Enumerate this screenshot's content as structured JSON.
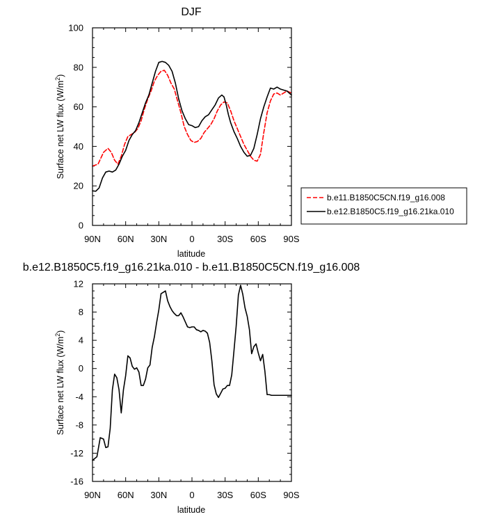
{
  "chart_data": [
    {
      "type": "line",
      "title": "DJF",
      "xlabel": "latitude",
      "ylabel": "Surface net LW flux (W/m",
      "ylabel_sup": "2",
      "ylabel_end": ")",
      "xlim": [
        -90,
        90
      ],
      "ylim": [
        0,
        100
      ],
      "xticks": [
        -90,
        -60,
        -30,
        0,
        30,
        60,
        90
      ],
      "xtick_labels": [
        "90N",
        "60N",
        "30N",
        "0",
        "30S",
        "60S",
        "90S"
      ],
      "yticks": [
        0,
        20,
        40,
        60,
        80,
        100
      ],
      "ytick_labels": [
        "0",
        "20",
        "40",
        "60",
        "80",
        "100"
      ],
      "grid": false,
      "legend_position": "right",
      "series": [
        {
          "name": "b.e11.B1850C5CN.f19_g16.008",
          "color": "#ff0000",
          "dash": "dashed",
          "x": [
            -90,
            -85,
            -80,
            -76,
            -73,
            -70,
            -67,
            -64,
            -61,
            -58,
            -55,
            -52,
            -49,
            -46,
            -43,
            -40,
            -37,
            -34,
            -31,
            -28,
            -25,
            -22,
            -19,
            -16,
            -13,
            -10,
            -7,
            -4,
            -1,
            2,
            5,
            8,
            11,
            14,
            17,
            20,
            23,
            26,
            29,
            32,
            35,
            38,
            41,
            44,
            47,
            50,
            53,
            56,
            59,
            62,
            65,
            68,
            71,
            74,
            77,
            80,
            83,
            86,
            90
          ],
          "values": [
            30,
            31,
            37,
            39,
            37,
            33,
            31,
            35,
            41,
            45,
            46,
            47,
            49,
            53,
            59,
            64,
            68,
            73,
            76,
            78,
            78.5,
            76,
            72,
            69,
            63,
            57,
            50,
            46,
            43,
            42,
            42.5,
            44,
            47,
            49,
            51,
            54,
            58,
            61,
            62.5,
            62,
            58,
            53,
            49,
            45,
            41,
            38,
            35,
            33,
            32.5,
            36,
            47,
            57,
            63,
            66.5,
            67,
            66,
            67,
            68,
            67
          ]
        },
        {
          "name": "b.e12.B1850C5.f19_g16.21ka.010",
          "color": "#000000",
          "dash": "solid",
          "x": [
            -90,
            -87,
            -84,
            -81,
            -78,
            -75,
            -72,
            -69,
            -66,
            -63,
            -60,
            -57,
            -54,
            -51,
            -48,
            -45,
            -42,
            -39,
            -36,
            -33,
            -30,
            -27,
            -24,
            -21,
            -18,
            -15,
            -12,
            -9,
            -6,
            -3,
            0,
            3,
            6,
            9,
            12,
            15,
            18,
            21,
            24,
            27,
            29,
            31,
            33,
            35,
            38,
            41,
            44,
            47,
            50,
            53,
            56,
            59,
            62,
            65,
            68,
            71,
            74,
            77,
            80,
            83,
            86,
            89,
            90
          ],
          "values": [
            17.5,
            17.3,
            19,
            24,
            27,
            27.5,
            27,
            28,
            31,
            35,
            38,
            43,
            46,
            48,
            52,
            57,
            62,
            66,
            72,
            78,
            82.5,
            83,
            82.5,
            81,
            78,
            72,
            64,
            58,
            54,
            51,
            50.5,
            49.5,
            50,
            53,
            55,
            56,
            58.5,
            61,
            64.5,
            66,
            65,
            61,
            56,
            52,
            47.5,
            44,
            40,
            37,
            35,
            35.5,
            39,
            46,
            54,
            60,
            65,
            69.5,
            69,
            70,
            69,
            68.5,
            68,
            66.5,
            66
          ]
        }
      ]
    },
    {
      "type": "line",
      "title": "b.e12.B1850C5.f19_g16.21ka.010 - b.e11.B1850C5CN.f19_g16.008",
      "xlabel": "latitude",
      "ylabel": "Surface net LW flux (W/m",
      "ylabel_sup": "2",
      "ylabel_end": ")",
      "xlim": [
        -90,
        90
      ],
      "ylim": [
        -16,
        12
      ],
      "xticks": [
        -90,
        -60,
        -30,
        0,
        30,
        60,
        90
      ],
      "xtick_labels": [
        "90N",
        "60N",
        "30N",
        "0",
        "30S",
        "60S",
        "90S"
      ],
      "yticks": [
        -16,
        -12,
        -8,
        -4,
        0,
        4,
        8,
        12
      ],
      "ytick_labels": [
        "-16",
        "-12",
        "-8",
        "-4",
        "0",
        "4",
        "8",
        "12"
      ],
      "grid": false,
      "series": [
        {
          "color": "#000000",
          "dash": "solid",
          "x": [
            -90,
            -86,
            -83,
            -80,
            -78,
            -76,
            -74,
            -72,
            -70,
            -68,
            -66,
            -64,
            -62,
            -60,
            -58,
            -56,
            -54,
            -52,
            -50,
            -48,
            -46,
            -44,
            -42,
            -40,
            -38,
            -36,
            -34,
            -32,
            -30,
            -28,
            -26,
            -24,
            -22,
            -20,
            -18,
            -16,
            -14,
            -12,
            -10,
            -8,
            -6,
            -4,
            -2,
            0,
            2,
            4,
            6,
            8,
            10,
            12,
            14,
            16,
            18,
            20,
            22,
            24,
            26,
            28,
            30,
            32,
            34,
            36,
            38,
            40,
            42,
            44,
            46,
            48,
            50,
            52,
            54,
            56,
            58,
            60,
            62,
            64,
            66,
            68,
            70,
            72,
            74,
            76,
            78,
            80,
            82,
            84,
            86,
            88,
            90
          ],
          "values": [
            -13,
            -12.5,
            -9.8,
            -10,
            -11.2,
            -11.1,
            -8.5,
            -3,
            -0.8,
            -1.3,
            -3,
            -6.3,
            -3,
            -1,
            1.8,
            1.5,
            0.3,
            -0.1,
            0.1,
            -0.5,
            -2.4,
            -2.4,
            -1.5,
            0.1,
            0.5,
            3,
            4.5,
            6.5,
            8.3,
            10.6,
            10.8,
            11,
            9.6,
            8.8,
            8.2,
            7.8,
            7.5,
            7.5,
            7.9,
            7.3,
            6.6,
            5.9,
            5.8,
            5.9,
            5.9,
            5.5,
            5.4,
            5.2,
            5.4,
            5.3,
            5,
            3.7,
            1.1,
            -2.3,
            -3.6,
            -4.1,
            -3.5,
            -2.9,
            -2.8,
            -2.4,
            -2.4,
            -0.9,
            2.5,
            6,
            10.4,
            11.8,
            10.5,
            8.6,
            7.4,
            5.5,
            2.1,
            3.1,
            3.5,
            2.2,
            1.1,
            2,
            -0.4,
            -3.7,
            -3.7,
            -3.8,
            -3.8,
            -3.8,
            -3.8,
            -3.8,
            -3.8,
            -3.8,
            -3.8,
            -3.8,
            -3.8
          ]
        }
      ]
    }
  ]
}
